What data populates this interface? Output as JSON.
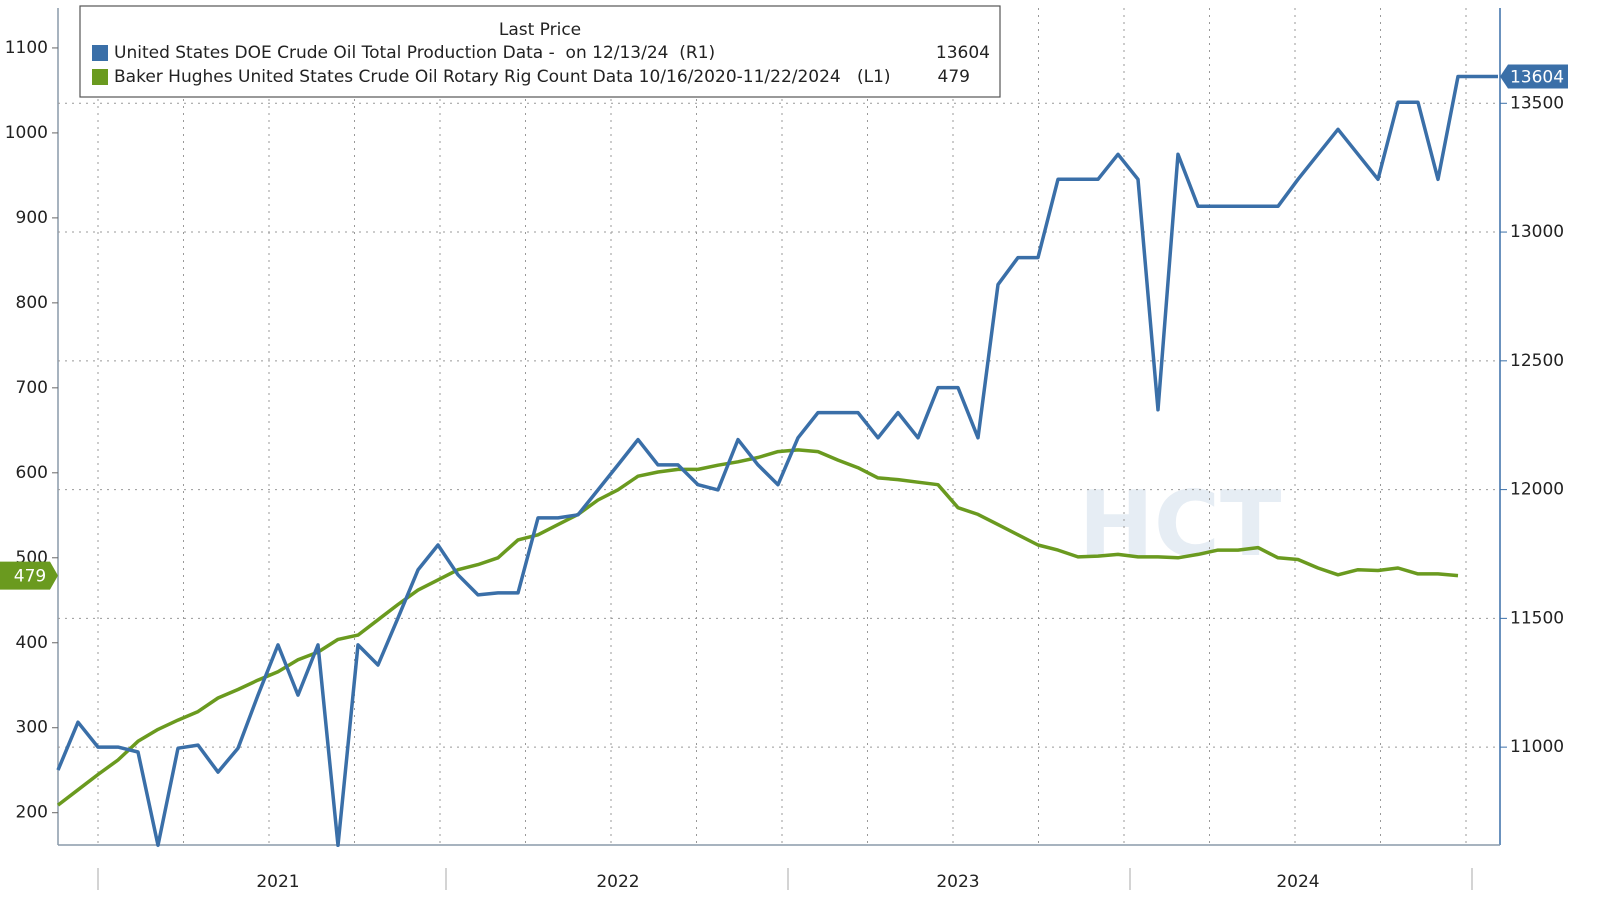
{
  "chart_data": {
    "type": "line",
    "legend_title": "Last Price",
    "legend_position": "upper left",
    "watermark": "HCT",
    "grid": true,
    "grid_axis": "y2",
    "categories": [
      null,
      null,
      null,
      null,
      null,
      null,
      null,
      null,
      null,
      null,
      null,
      "2021",
      null,
      null,
      null,
      null,
      null,
      null,
      null,
      null,
      null,
      null,
      null,
      null,
      null,
      null,
      null,
      null,
      "2022",
      null,
      null,
      null,
      null,
      null,
      null,
      null,
      null,
      null,
      null,
      null,
      null,
      null,
      null,
      null,
      null,
      "2023",
      null,
      null,
      null,
      null,
      null,
      null,
      null,
      null,
      null,
      null,
      null,
      null,
      null,
      null,
      null,
      null,
      "2024",
      null,
      null,
      null,
      null,
      null,
      null,
      null,
      null,
      null,
      null
    ],
    "ylim": [
      162,
      1147
    ],
    "yticks": [
      200,
      300,
      400,
      500,
      600,
      700,
      800,
      900,
      1000,
      1100
    ],
    "y2lim": [
      10620,
      13870
    ],
    "y2ticks": [
      11000,
      11500,
      12000,
      12500,
      13000,
      13500
    ],
    "series": [
      {
        "name": "United States DOE Crude Oil Total Production Data -  on 12/13/24  (R1)",
        "color": "#3a6fa8",
        "axis": "y2",
        "values": [
          10911,
          11097,
          11000,
          11000,
          10981,
          10619,
          10996,
          11008,
          10903,
          10996,
          11202,
          11397,
          11202,
          11397,
          10619,
          11397,
          11319,
          11502,
          11688,
          11785,
          11669,
          11591,
          11599,
          11599,
          11890,
          11890,
          11902,
          11999,
          12096,
          12194,
          12096,
          12096,
          12019,
          11999,
          12194,
          12096,
          12019,
          12201,
          12299,
          12299,
          12299,
          12201,
          12299,
          12201,
          12396,
          12396,
          12201,
          12796,
          12901,
          12901,
          13205,
          13205,
          13205,
          13302,
          13205,
          12310,
          13302,
          13100,
          13100,
          13100,
          13100,
          13100,
          13205,
          13302,
          13399,
          13302,
          13205,
          13504,
          13504,
          13205,
          13604,
          13604,
          13604
        ]
      },
      {
        "name": "Baker Hughes United States Crude Oil Rotary Rig Count Data 10/16/2020-11/22/2024   (L1)",
        "color": "#6a9a1f",
        "axis": "y",
        "values": [
          209,
          227,
          245,
          262,
          284,
          298,
          309,
          319,
          335,
          345,
          356,
          366,
          380,
          389,
          404,
          409,
          427,
          445,
          462,
          474,
          486,
          492,
          500,
          521,
          527,
          539,
          551,
          568,
          580,
          596,
          601,
          604,
          604,
          609,
          613,
          618,
          625,
          627,
          625,
          615,
          606,
          594,
          592,
          589,
          586,
          559,
          551,
          539,
          527,
          515,
          509,
          501,
          502,
          504,
          501,
          501,
          500,
          504,
          509,
          509,
          512,
          500,
          498,
          488,
          480,
          486,
          485,
          488,
          481,
          481,
          479,
          null,
          null
        ]
      }
    ]
  }
}
